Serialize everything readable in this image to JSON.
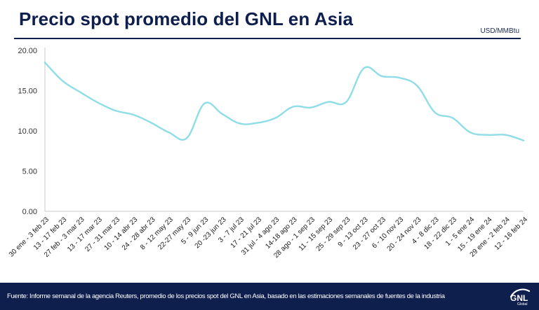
{
  "header": {
    "title": "Precio spot promedio del GNL en Asia",
    "unit": "USD/MMBtu"
  },
  "footer": {
    "source": "Fuente: Informe semanal de la agencia Reuters, promedio de los precios spot del GNL en Asia, basado en las estimaciones semanales de fuentes de la industria"
  },
  "logo": {
    "text": "GNL",
    "subtext": "Global"
  },
  "colors": {
    "line": "#8fdde6",
    "title": "#0f1f4d",
    "footer_bg": "#0f1f4d",
    "axis": "#c8c8c8"
  },
  "chart_data": {
    "type": "line",
    "title": "Precio spot promedio del GNL en Asia",
    "ylabel": "USD/MMBtu",
    "ylim": [
      0,
      20
    ],
    "yticks": [
      "0.00",
      "5.00",
      "10.00",
      "15.00",
      "20.00"
    ],
    "grid": false,
    "categories": [
      "30 ene - 3 feb 23",
      "13 - 17 feb 23",
      "27 feb - 3 mar 23",
      "13 - 17 mar 23",
      "27 - 31 mar 23",
      "10 - 14 abr 23",
      "24 - 28 abr 23",
      "8 - 12 may 23",
      "22-27 may 23",
      "5 - 9 jun 23",
      "20 -23 jun 23",
      "3 - 7 jul 23",
      "17 - 21 jul 23",
      "31 jul - 4 ago 23",
      "14-18 ago 23",
      "28 ago - 1 sep 23",
      "11 - 15 sep 23",
      "25 - 29 sep 23",
      "9 - 13 oct 23",
      "23 - 27 oct 23",
      "6 - 10 nov 23",
      "20 - 24 nov 23",
      "4 - 8 dic 23",
      "18 - 22 dic 23",
      "1 - 5 ene 24",
      "15 - 19 ene 24",
      "29 ene - 2 feb 24",
      "12 - 16 feb 24"
    ],
    "series": [
      {
        "values": [
          18.5,
          16.2,
          14.8,
          13.5,
          12.5,
          12.0,
          11.0,
          9.8,
          9.1,
          13.4,
          12.1,
          10.9,
          11.0,
          11.6,
          13.0,
          12.9,
          13.6,
          13.6,
          17.8,
          16.8,
          16.6,
          15.6,
          12.3,
          11.6,
          9.8,
          9.5,
          9.5,
          8.8
        ]
      }
    ]
  }
}
